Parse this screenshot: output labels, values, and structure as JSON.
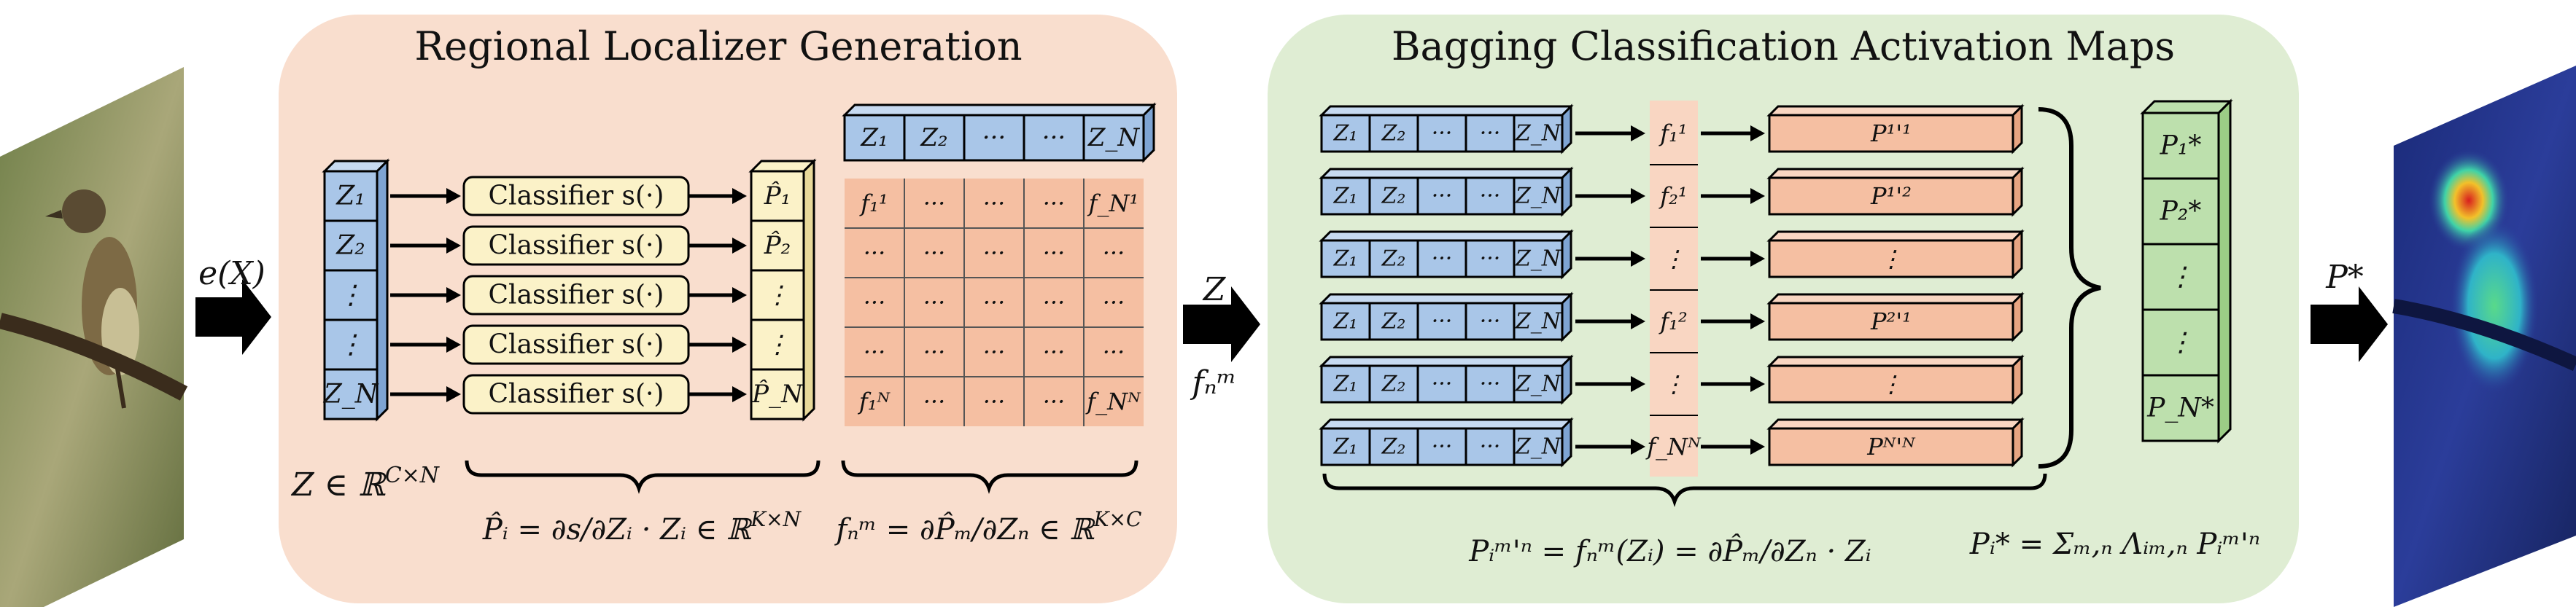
{
  "colors": {
    "panel_left": "#f9dece",
    "panel_right": "#dfedd3",
    "blue_face": "#a9c6e8",
    "blue_top": "#c7daf1",
    "blue_side": "#7ea4d3",
    "yellow_face": "#fbf2c8",
    "yellow_side": "#e8d99a",
    "orange_cell": "#f5bfa2",
    "orange_light": "#f9d6c2",
    "green_face": "#bde0ad",
    "green_side": "#9ccd86",
    "arrow": "#000000"
  },
  "icons": [
    "bird-photo",
    "heatmap-overlay",
    "block-arrow-right",
    "curly-brace"
  ],
  "left_panel": {
    "title": "Regional Localizer Generation",
    "z_column": [
      "Z₁",
      "Z₂",
      "⋮",
      "⋮",
      "Z_N"
    ],
    "z_caption": "Z ∈ ℝ",
    "z_caption_sup": "C×N",
    "classifier_label": "Classifier s(·)",
    "p_column": [
      "P̂₁",
      "P̂₂",
      "⋮",
      "⋮",
      "P̂_N"
    ],
    "p_formula_left": "P̂ᵢ = ∂s/∂Zᵢ · Zᵢ ∈ ℝ",
    "p_formula_left_sup": "K×N",
    "z_row": [
      "Z₁",
      "Z₂",
      "···",
      "···",
      "Z_N"
    ],
    "grid": [
      [
        "f₁¹",
        "···",
        "···",
        "···",
        "f_N¹"
      ],
      [
        "···",
        "···",
        "···",
        "···",
        "···"
      ],
      [
        "···",
        "···",
        "···",
        "···",
        "···"
      ],
      [
        "···",
        "···",
        "···",
        "···",
        "···"
      ],
      [
        "f₁ᴺ",
        "···",
        "···",
        "···",
        "f_Nᴺ"
      ]
    ],
    "f_formula": "fₙᵐ = ∂P̂ₘ/∂Zₙ ∈ ℝ",
    "f_formula_sup": "K×C"
  },
  "input_arrow_label": "e(X)",
  "middle_arrow_label_top": "Z",
  "middle_arrow_label_bottom": "fₙᵐ",
  "right_panel": {
    "title": "Bagging Classification Activation Maps",
    "rows": [
      {
        "z": [
          "Z₁",
          "Z₂",
          "···",
          "···",
          "Z_N"
        ],
        "f": "f₁¹",
        "p": "P¹'¹"
      },
      {
        "z": [
          "Z₁",
          "Z₂",
          "···",
          "···",
          "Z_N"
        ],
        "f": "f₂¹",
        "p": "P¹'²"
      },
      {
        "z": [
          "Z₁",
          "Z₂",
          "···",
          "···",
          "Z_N"
        ],
        "f": "⋮",
        "p": "⋮"
      },
      {
        "z": [
          "Z₁",
          "Z₂",
          "···",
          "···",
          "Z_N"
        ],
        "f": "f₁²",
        "p": "P²'¹"
      },
      {
        "z": [
          "Z₁",
          "Z₂",
          "···",
          "···",
          "Z_N"
        ],
        "f": "⋮",
        "p": "⋮"
      },
      {
        "z": [
          "Z₁",
          "Z₂",
          "···",
          "···",
          "Z_N"
        ],
        "f": "f_Nᴺ",
        "p": "Pᴺ'ᴺ"
      }
    ],
    "p_star_column": [
      "P₁*",
      "P₂*",
      "⋮",
      "⋮",
      "P_N*"
    ],
    "formula_left": "Pᵢᵐ'ⁿ = fₙᵐ(Zᵢ) = ∂P̂ₘ/∂Zₙ · Zᵢ",
    "formula_right": "Pᵢ* = Σₘ,ₙ Λᵢₘ,ₙ Pᵢᵐ'ⁿ"
  },
  "output_arrow_label": "P*"
}
